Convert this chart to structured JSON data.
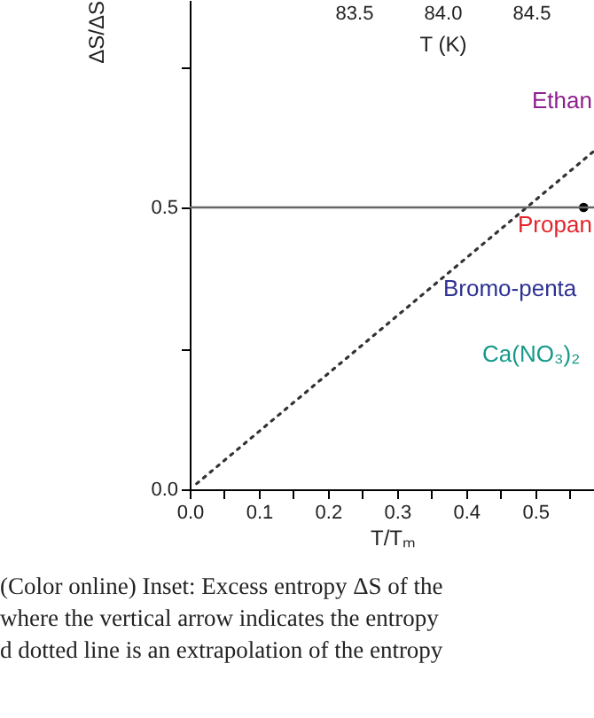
{
  "chart_data": [
    {
      "type": "line",
      "xlabel": "T/Tₘ",
      "ylabel": "ΔS/ΔS",
      "xlim": [
        0,
        0.585
      ],
      "ylim": [
        0,
        0.868
      ],
      "xticks": [
        {
          "value": 0,
          "label": "0.0"
        },
        {
          "value": 0.05,
          "label": null
        },
        0.1,
        {
          "value": 0.15,
          "label": null
        },
        0.2,
        {
          "value": 0.25,
          "label": null
        },
        0.3,
        {
          "value": 0.35,
          "label": null
        },
        0.4,
        {
          "value": 0.45,
          "label": null
        },
        0.5,
        {
          "value": 0.55,
          "label": null
        }
      ],
      "yticks": [
        {
          "value": 0,
          "label": "0.0"
        },
        {
          "value": 0.25,
          "label": null
        },
        0.5,
        {
          "value": 0.75,
          "label": null
        }
      ],
      "series": [
        {
          "type": "line",
          "color": "#333333",
          "line_style": "dotted",
          "x": [
            0.01,
            0.585
          ],
          "values": [
            0.01,
            0.6
          ]
        },
        {
          "type": "scatter",
          "color": "#000000",
          "x": [
            0.57
          ],
          "values": [
            0.5
          ]
        }
      ],
      "ref_lines": [
        {
          "axis": "y",
          "value": 0.5,
          "color": "#666666"
        }
      ],
      "annotations": [
        "Ethan",
        "Propan",
        "Bromo-penta",
        "Ca(NO₃)₂",
        "(Color online) Inset: Excess entropy ΔS of the",
        "where the vertical arrow indicates the entropy",
        "d dotted line is an extrapolation of the entropy"
      ]
    },
    {
      "type": "other",
      "xlabel": "T (K)",
      "annotations": [
        "83.5",
        "84.0",
        "84.5"
      ]
    }
  ]
}
